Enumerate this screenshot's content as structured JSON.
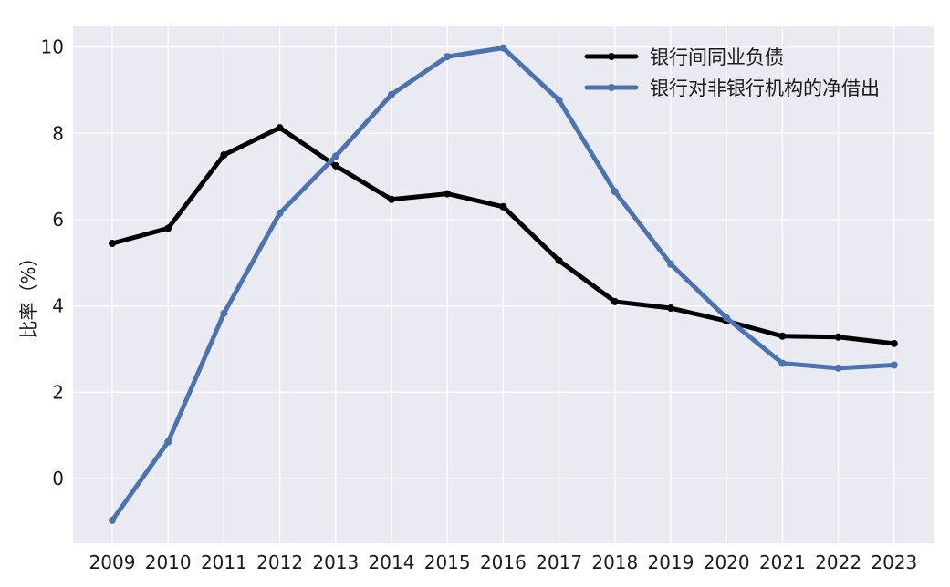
{
  "chart_data": {
    "type": "line",
    "title": "",
    "xlabel": "",
    "ylabel": "比率（%）",
    "categories": [
      "2009",
      "2010",
      "2011",
      "2012",
      "2013",
      "2014",
      "2015",
      "2016",
      "2017",
      "2018",
      "2019",
      "2020",
      "2021",
      "2022",
      "2023"
    ],
    "ylim": [
      -1.5,
      10.5
    ],
    "yticks": [
      0,
      2,
      4,
      6,
      8,
      10
    ],
    "grid": true,
    "legend_position": "top-right",
    "series": [
      {
        "name": "银行间同业负债",
        "color": "#000000",
        "values": [
          5.45,
          5.8,
          7.5,
          8.13,
          7.25,
          6.47,
          6.6,
          6.3,
          5.05,
          4.1,
          3.95,
          3.65,
          3.3,
          3.28,
          3.13
        ]
      },
      {
        "name": "银行对非银行机构的净借出",
        "color": "#4c72b0",
        "values": [
          -0.97,
          0.85,
          3.83,
          6.15,
          7.47,
          8.9,
          9.78,
          9.98,
          8.77,
          6.65,
          4.97,
          3.72,
          2.67,
          2.56,
          2.63
        ]
      }
    ]
  }
}
